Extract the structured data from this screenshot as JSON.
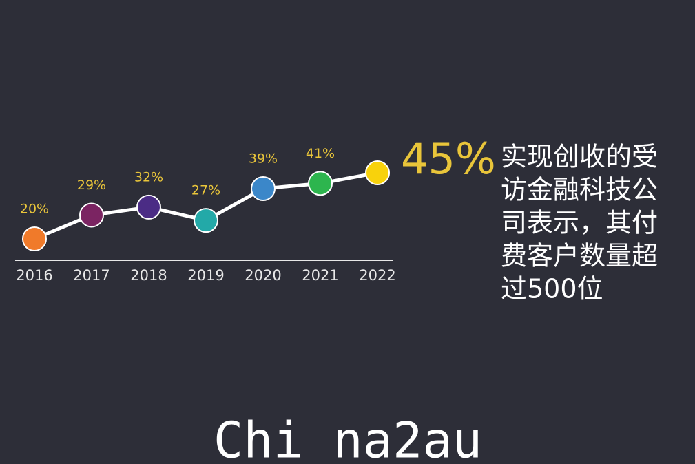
{
  "chart_data": {
    "type": "line",
    "categories": [
      "2016",
      "2017",
      "2018",
      "2019",
      "2020",
      "2021",
      "2022"
    ],
    "values": [
      20,
      29,
      32,
      27,
      39,
      41,
      45
    ],
    "value_labels": [
      "20%",
      "29%",
      "32%",
      "27%",
      "39%",
      "41%",
      "45%"
    ],
    "point_colors": [
      "#f07a2a",
      "#7b2462",
      "#4b2c85",
      "#23a9a8",
      "#3b87c9",
      "#2db54e",
      "#f8d20c"
    ],
    "line_color": "#ffffff",
    "label_color": "#e9c53a",
    "annotation": [
      "实现创收的受",
      "访金融科技公",
      "司表示，其付",
      "费客户数量超",
      "过500位"
    ],
    "watermark": "Chi na2au"
  }
}
